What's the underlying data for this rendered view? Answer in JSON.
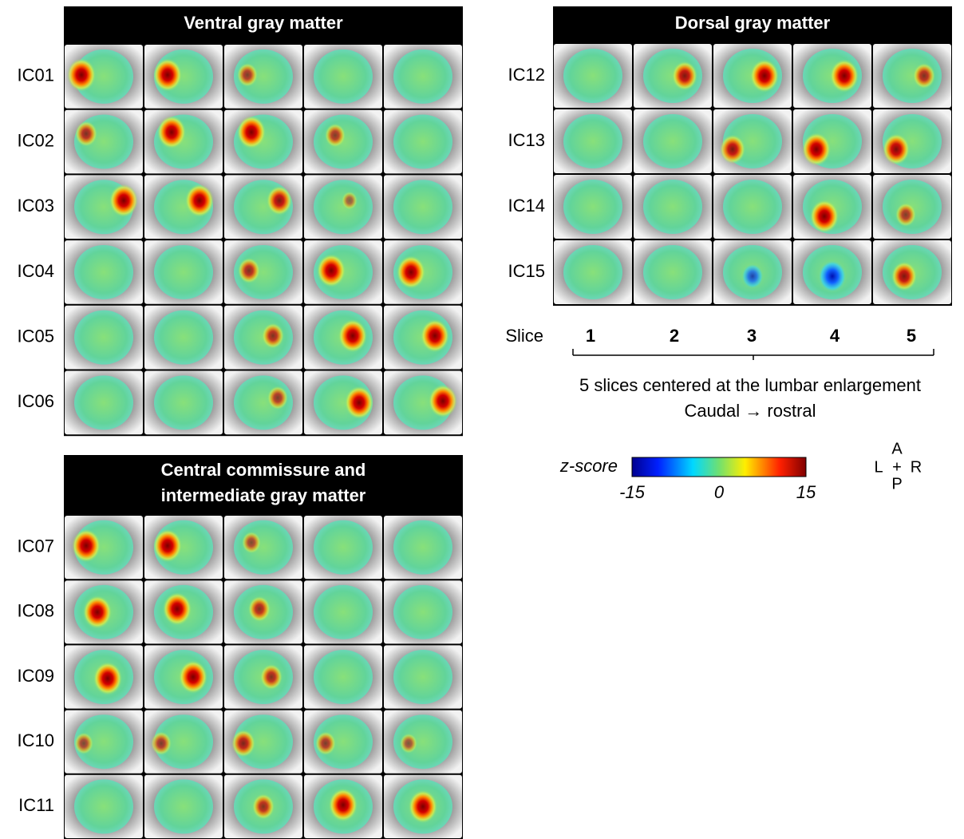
{
  "panels": [
    {
      "title": [
        "Ventral gray matter"
      ],
      "rows": [
        "IC01",
        "IC02",
        "IC03",
        "IC04",
        "IC05",
        "IC06"
      ]
    },
    {
      "title": [
        "Dorsal gray matter"
      ],
      "rows": [
        "IC12",
        "IC13",
        "IC14",
        "IC15"
      ]
    },
    {
      "title": [
        "Central commissure and",
        "intermediate gray matter"
      ],
      "rows": [
        "IC07",
        "IC08",
        "IC09",
        "IC10",
        "IC11"
      ]
    }
  ],
  "slices": {
    "label": "Slice",
    "numbers": [
      1,
      2,
      3,
      4,
      5
    ],
    "caption": [
      "5 slices centered at the lumbar enlargement",
      "Caudal → rostral"
    ]
  },
  "colorbar": {
    "label": "z-score",
    "ticks": [
      -15,
      0,
      15
    ]
  },
  "orientation": {
    "anterior": "A",
    "left": "L",
    "center": "+",
    "right": "R",
    "posterior": "P"
  }
}
